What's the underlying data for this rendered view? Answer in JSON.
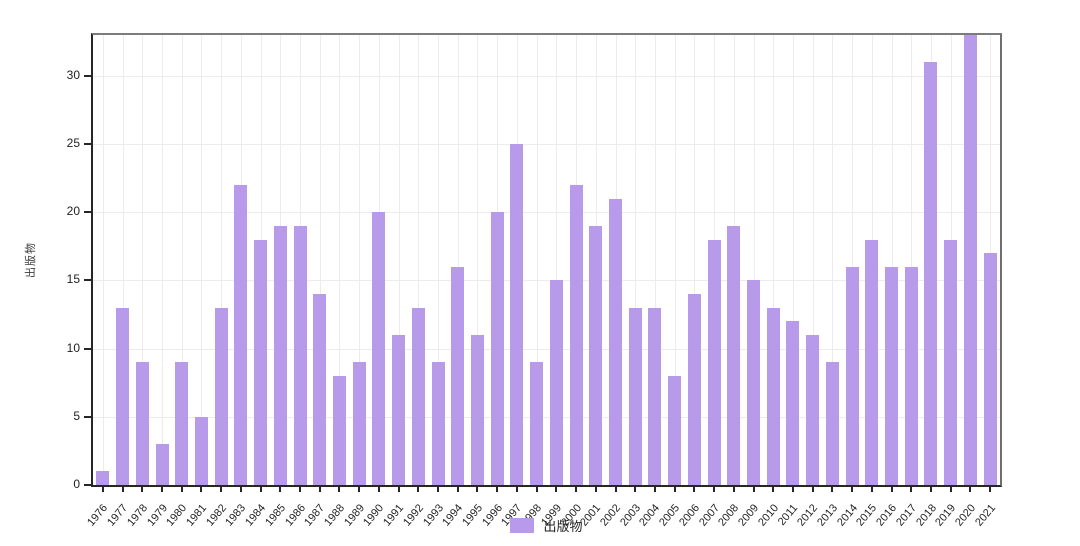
{
  "chart_data": {
    "type": "bar",
    "ylabel": "出版物",
    "xlabel": "",
    "legend": [
      "出版物"
    ],
    "legend_position": "bottom",
    "categories": [
      "1976",
      "1977",
      "1978",
      "1979",
      "1980",
      "1981",
      "1982",
      "1983",
      "1984",
      "1985",
      "1986",
      "1987",
      "1988",
      "1989",
      "1990",
      "1991",
      "1992",
      "1993",
      "1994",
      "1995",
      "1996",
      "1997",
      "1998",
      "1999",
      "2000",
      "2001",
      "2002",
      "2003",
      "2004",
      "2005",
      "2006",
      "2007",
      "2008",
      "2009",
      "2010",
      "2011",
      "2012",
      "2013",
      "2014",
      "2015",
      "2016",
      "2017",
      "2018",
      "2019",
      "2020",
      "2021"
    ],
    "values": [
      1,
      13,
      9,
      3,
      9,
      5,
      13,
      22,
      18,
      19,
      19,
      14,
      8,
      9,
      20,
      11,
      13,
      9,
      16,
      11,
      20,
      25,
      9,
      15,
      22,
      19,
      21,
      13,
      13,
      8,
      14,
      18,
      19,
      15,
      13,
      12,
      11,
      9,
      16,
      18,
      16,
      16,
      31,
      18,
      33,
      17
    ],
    "ylim": [
      0,
      33
    ],
    "yticks": [
      0,
      5,
      10,
      15,
      20,
      25,
      30
    ],
    "bar_color": "#b79aea",
    "grid": true
  }
}
